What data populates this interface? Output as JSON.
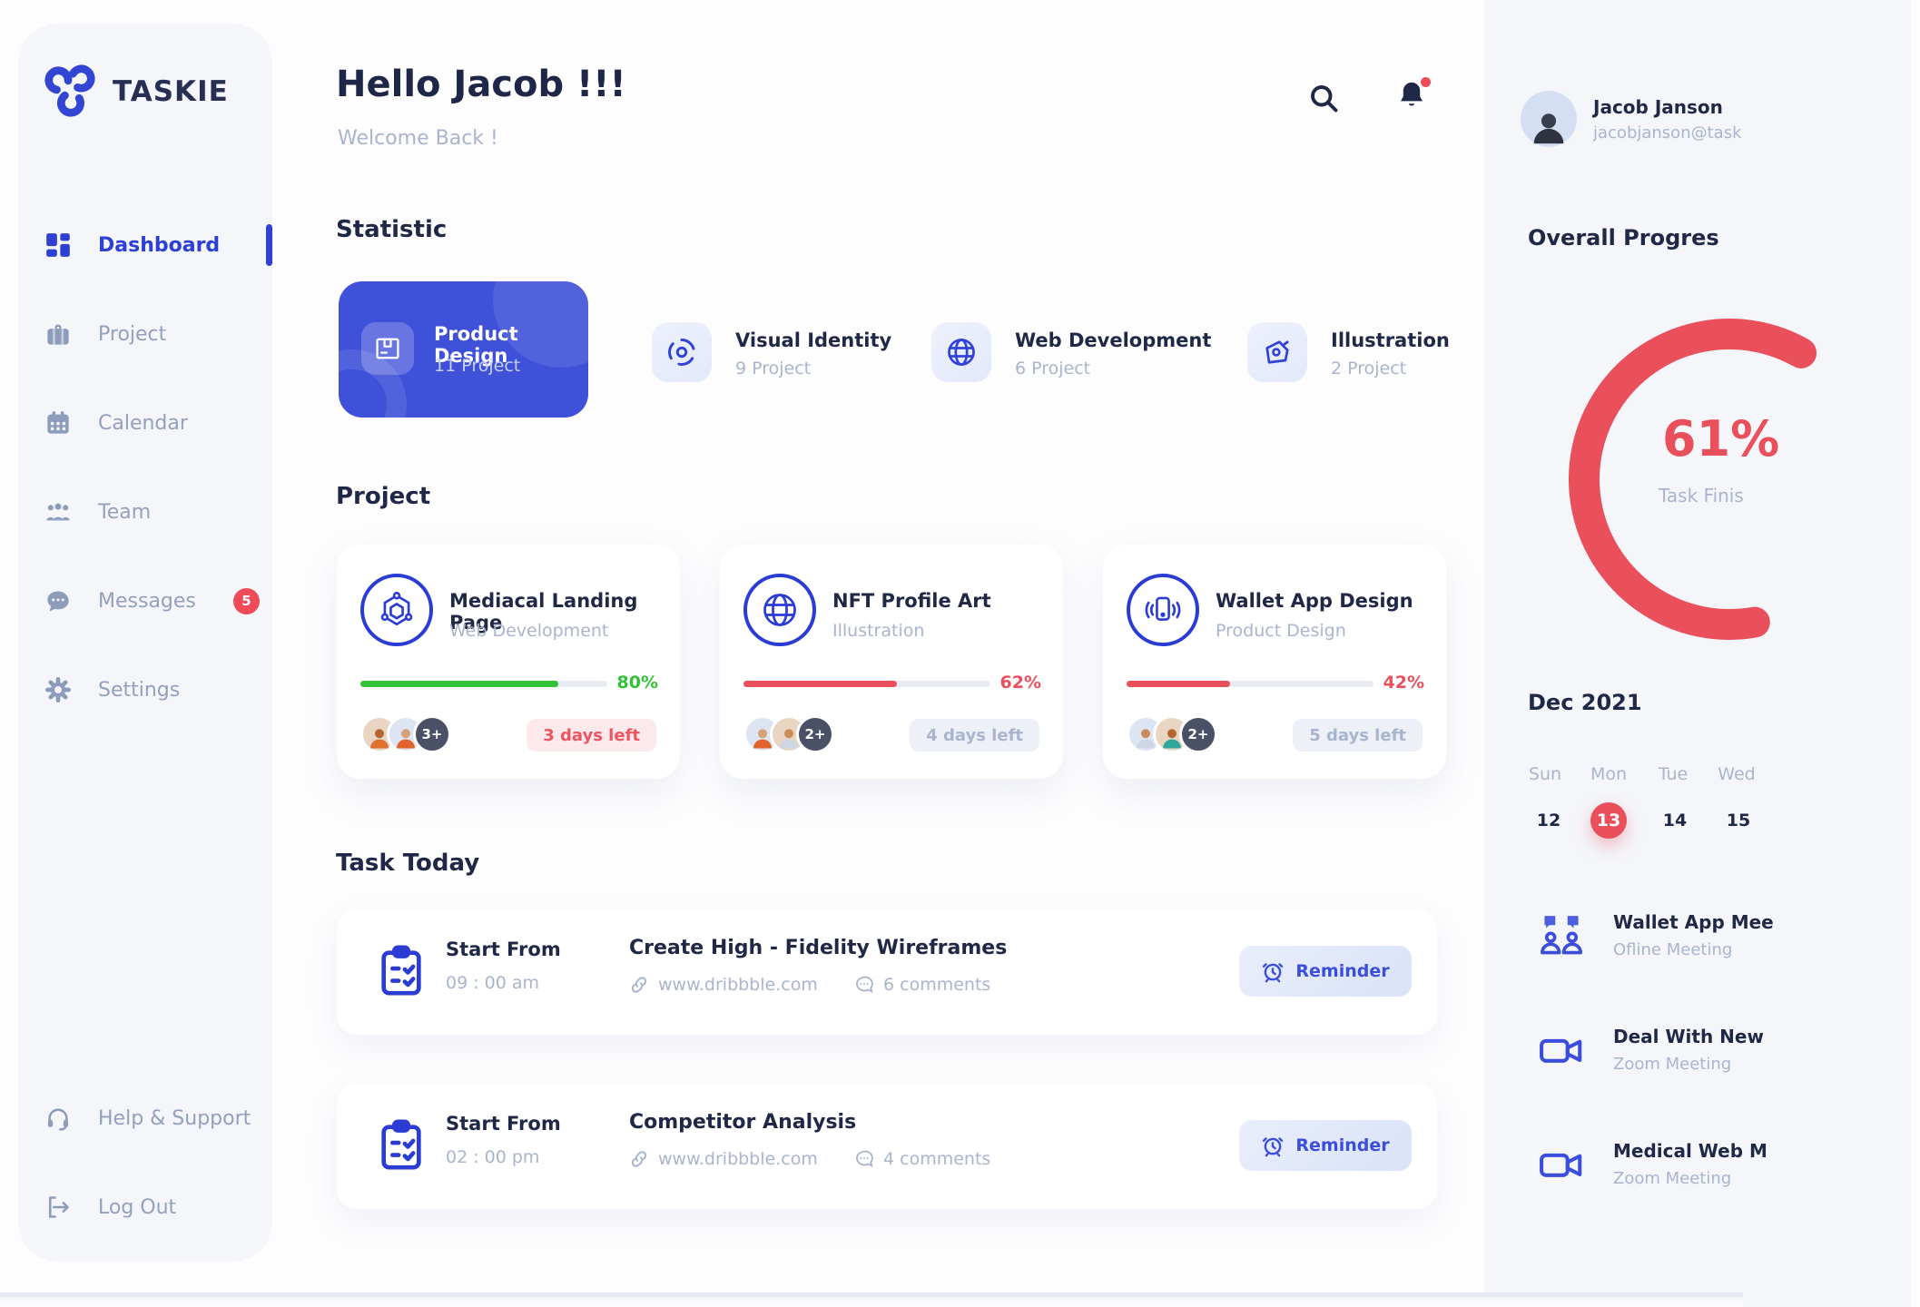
{
  "app": {
    "brand": "TASKIE"
  },
  "colors": {
    "primary_blue": "#3B4EDB",
    "accent_red": "#E9505C",
    "green": "#31C235",
    "dark_navy": "#1F2947",
    "muted": "#A9B4CE",
    "panel_bg": "#F4F6FA"
  },
  "header": {
    "greeting": "Hello Jacob !!!",
    "subtitle": "Welcome Back !"
  },
  "sidebar": {
    "items": [
      {
        "label": "Dashboard",
        "active": true
      },
      {
        "label": "Project"
      },
      {
        "label": "Calendar"
      },
      {
        "label": "Team"
      },
      {
        "label": "Messages",
        "badge": "5"
      },
      {
        "label": "Settings"
      }
    ],
    "footer": [
      {
        "label": "Help & Support"
      },
      {
        "label": "Log Out"
      }
    ]
  },
  "profile": {
    "name": "Jacob Janson",
    "email": "jacobjanson@task"
  },
  "statistic": {
    "title": "Statistic",
    "cards": [
      {
        "title": "Product Design",
        "count": "11 Project",
        "icon": "package-icon",
        "highlighted": true
      },
      {
        "title": "Visual Identity",
        "count": "9 Project",
        "icon": "swirl-icon"
      },
      {
        "title": "Web Development",
        "count": "6 Project",
        "icon": "globe-icon"
      },
      {
        "title": "Illustration",
        "count": "2 Project",
        "icon": "pen-nib-icon"
      }
    ]
  },
  "projects": {
    "title": "Project",
    "cards": [
      {
        "title": "Mediacal Landing Page",
        "category": "Web Development",
        "progress": 80,
        "percent_label": "80%",
        "status_color": "green",
        "days_left": "3 days left",
        "days_left_style": "red",
        "extra_members": "3+",
        "icon": "hexagon-molecule-icon"
      },
      {
        "title": "NFT Profile Art",
        "category": "Illustration",
        "progress": 62,
        "percent_label": "62%",
        "status_color": "red",
        "days_left": "4 days left",
        "days_left_style": "gray",
        "extra_members": "2+",
        "icon": "globe-icon"
      },
      {
        "title": "Wallet App Design",
        "category": "Product Design",
        "progress": 42,
        "percent_label": "42%",
        "status_color": "red",
        "days_left": "5 days left",
        "days_left_style": "gray",
        "extra_members": "2+",
        "icon": "phone-vibrate-icon"
      }
    ]
  },
  "tasks": {
    "title": "Task Today",
    "items": [
      {
        "start_label": "Start From",
        "time": "09 : 00 am",
        "name": "Create High - Fidelity Wireframes",
        "link": "www.dribbble.com",
        "comments": "6 comments",
        "action": "Reminder"
      },
      {
        "start_label": "Start From",
        "time": "02 : 00 pm",
        "name": "Competitor Analysis",
        "link": "www.dribbble.com",
        "comments": "4 comments",
        "action": "Reminder"
      }
    ]
  },
  "overall": {
    "title": "Overall Progres",
    "percent": "61%",
    "percent_value": 61,
    "caption": "Task Finis"
  },
  "calendar": {
    "month": "Dec 2021",
    "days": [
      "Sun",
      "Mon",
      "Tue",
      "Wed"
    ],
    "dates": [
      "12",
      "13",
      "14",
      "15"
    ],
    "selected_date": "13"
  },
  "meetings": [
    {
      "title": "Wallet App Mee",
      "subtitle": "Ofline Meeting",
      "icon": "people-chat-icon"
    },
    {
      "title": "Deal With New",
      "subtitle": "Zoom Meeting",
      "icon": "video-camera-icon"
    },
    {
      "title": "Medical Web M",
      "subtitle": "Zoom Meeting",
      "icon": "video-camera-icon"
    }
  ]
}
